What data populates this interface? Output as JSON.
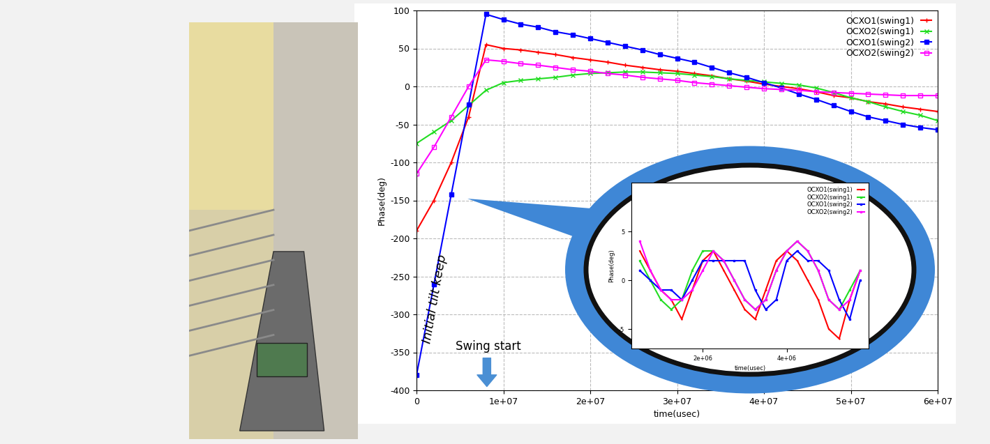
{
  "chart_data": [
    {
      "type": "line",
      "x_label": "time(usec)",
      "y_label": "Phase(deg)",
      "annotations": [
        "Initial tilt keep",
        "Swing start"
      ],
      "x": [
        0,
        2000000,
        4000000,
        6000000,
        8000000,
        10000000,
        12000000,
        14000000,
        16000000,
        18000000,
        20000000,
        22000000,
        24000000,
        26000000,
        28000000,
        30000000,
        32000000,
        34000000,
        36000000,
        38000000,
        40000000,
        42000000,
        44000000,
        46000000,
        48000000,
        50000000,
        52000000,
        54000000,
        56000000,
        58000000,
        60000000
      ],
      "series": [
        {
          "name": "OCXO1(swing1)",
          "color": "#ff0000",
          "marker": "plus",
          "line_style": "solid",
          "values": [
            -190,
            -150,
            -100,
            -40,
            55,
            50,
            48,
            45,
            42,
            38,
            35,
            32,
            28,
            25,
            22,
            20,
            17,
            14,
            10,
            7,
            3,
            0,
            -3,
            -7,
            -12,
            -15,
            -20,
            -23,
            -27,
            -30,
            -33
          ]
        },
        {
          "name": "OCXO2(swing1)",
          "color": "#22dd22",
          "marker": "cross",
          "line_style": "solid",
          "values": [
            -75,
            -60,
            -45,
            -25,
            -5,
            5,
            8,
            10,
            12,
            15,
            17,
            18,
            19,
            19,
            18,
            17,
            15,
            13,
            10,
            8,
            6,
            4,
            2,
            -2,
            -8,
            -15,
            -20,
            -27,
            -33,
            -38,
            -45
          ]
        },
        {
          "name": "OCXO1(swing2)",
          "color": "#0000ff",
          "marker": "square",
          "line_style": "solid",
          "values": [
            -380,
            -261,
            -142,
            -24,
            95,
            88,
            82,
            78,
            72,
            68,
            63,
            58,
            53,
            48,
            42,
            37,
            32,
            25,
            18,
            12,
            5,
            -2,
            -10,
            -17,
            -25,
            -33,
            -40,
            -45,
            -50,
            -54,
            -57
          ]
        },
        {
          "name": "OCXO2(swing2)",
          "color": "#ff00ff",
          "marker": "open_square",
          "line_style": "solid",
          "values": [
            -115,
            -80,
            -40,
            0,
            35,
            33,
            30,
            28,
            25,
            22,
            20,
            17,
            15,
            12,
            10,
            8,
            5,
            3,
            1,
            -1,
            -3,
            -4,
            -5,
            -7,
            -8,
            -9,
            -10,
            -11,
            -12,
            -12,
            -12
          ]
        }
      ],
      "xlim": [
        0,
        60000000
      ],
      "xticks": [
        0,
        {
          "value": 10000000,
          "label": "1e+07"
        },
        {
          "value": 20000000,
          "label": "2e+07"
        },
        {
          "value": 30000000,
          "label": "3e+07"
        },
        {
          "value": 40000000,
          "label": "4e+07"
        },
        {
          "value": 50000000,
          "label": "5e+07"
        },
        {
          "value": 60000000,
          "label": "6e+07"
        }
      ],
      "ylim": [
        -400,
        100
      ],
      "yticks": [
        -400,
        -350,
        -300,
        -250,
        -200,
        -150,
        -100,
        -50,
        0,
        50,
        100
      ],
      "grid": true,
      "legend": "upper right"
    },
    {
      "type": "line",
      "x_label": "time(usec)",
      "y_label": "Phase(deg)",
      "x": [
        500000,
        750000,
        1000000,
        1250000,
        1500000,
        1750000,
        2000000,
        2250000,
        2500000,
        2750000,
        3000000,
        3250000,
        3500000,
        3750000,
        4000000,
        4250000,
        4500000,
        4750000,
        5000000,
        5250000,
        5500000,
        5750000
      ],
      "series": [
        {
          "name": "OCXO1(swing1)",
          "color": "#ff0000",
          "marker": "plus",
          "line_style": "solid",
          "values": [
            3,
            1,
            -1,
            -2,
            -4,
            -1,
            2,
            3,
            1,
            -1,
            -3,
            -4,
            -1,
            2,
            3,
            2,
            0,
            -2,
            -5,
            -6,
            -2,
            1
          ]
        },
        {
          "name": "OCXO2(swing1)",
          "color": "#22dd22",
          "marker": "cross",
          "line_style": "solid",
          "values": [
            2,
            0,
            -2,
            -3,
            -2,
            1,
            3,
            3,
            2,
            0,
            -2,
            -3,
            -2,
            1,
            3,
            4,
            3,
            1,
            -2,
            -3,
            -1,
            1
          ]
        },
        {
          "name": "OCXO1(swing2)",
          "color": "#0000ff",
          "marker": "square",
          "line_style": "solid",
          "values": [
            1,
            0,
            -1,
            -1,
            -2,
            0,
            2,
            2,
            2,
            2,
            2,
            -1,
            -3,
            -2,
            2,
            3,
            2,
            2,
            1,
            -2,
            -4,
            0
          ]
        },
        {
          "name": "OCXO2(swing2)",
          "color": "#ff00ff",
          "marker": "open_square",
          "line_style": "solid",
          "values": [
            4,
            1,
            -1,
            -2,
            -2,
            -1,
            1,
            3,
            2,
            0,
            -2,
            -3,
            -2,
            1,
            3,
            4,
            3,
            1,
            -2,
            -3,
            -2,
            1
          ]
        }
      ],
      "xlim": [
        300000,
        5950000
      ],
      "xticks": [
        {
          "value": 2000000,
          "label": "2e+06"
        },
        {
          "value": 4000000,
          "label": "4e+06"
        }
      ],
      "ylim": [
        -7,
        10
      ],
      "yticks": [
        -5,
        0,
        5
      ],
      "grid": false,
      "legend": "upper right"
    }
  ]
}
